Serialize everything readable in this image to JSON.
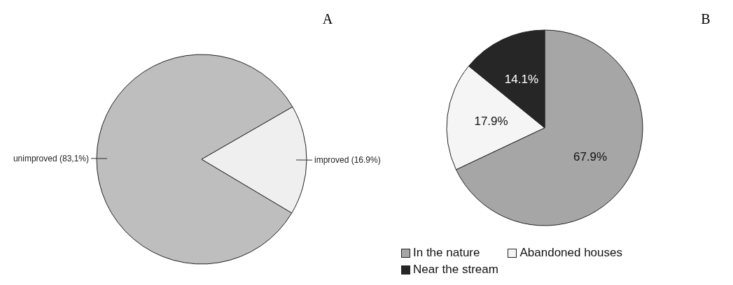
{
  "chart_data": [
    {
      "type": "pie",
      "title": "A",
      "categories": [
        "unimproved",
        "improved"
      ],
      "values": [
        83.1,
        16.9
      ],
      "value_labels": [
        "(83,1%)",
        "(16.9%)"
      ],
      "colors": [
        "#bebebe",
        "#efefef"
      ],
      "legend": false
    },
    {
      "type": "pie",
      "title": "B",
      "categories": [
        "In the nature",
        "Abandoned houses",
        "Near the stream"
      ],
      "values": [
        67.9,
        17.9,
        14.1
      ],
      "value_labels": [
        "67.9%",
        "17.9%",
        "14.1%"
      ],
      "colors": [
        "#a6a6a6",
        "#f5f5f5",
        "#262626"
      ],
      "legend": "bottom"
    }
  ]
}
